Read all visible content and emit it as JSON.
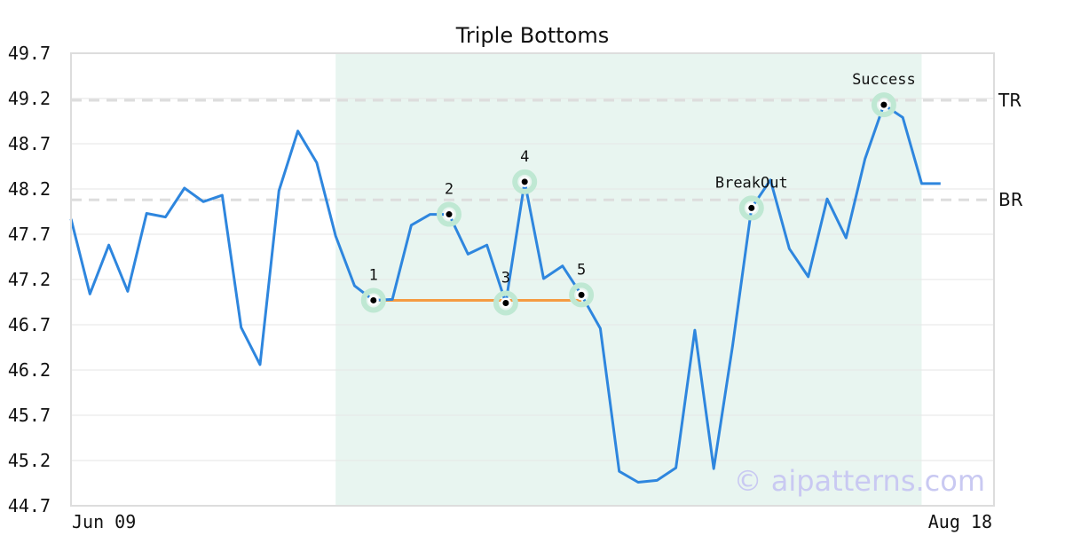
{
  "chart_data": {
    "type": "line",
    "title": "Triple Bottoms",
    "watermark": "© aipatterns.com",
    "xlabel": "",
    "ylabel": "",
    "x_tick_labels": [
      "Jun 09",
      "Aug 18"
    ],
    "y_ticks": [
      "44.7",
      "45.2",
      "45.7",
      "46.2",
      "46.7",
      "47.2",
      "47.7",
      "48.2",
      "48.7",
      "49.2",
      "49.7"
    ],
    "ylim": [
      44.7,
      49.7
    ],
    "x_count": 50,
    "grid": true,
    "colors": {
      "line": "#2e86de",
      "base": "#f59b42",
      "highlight": "#e8f5f0",
      "marker_ring": "#bfe8d3",
      "level_line": "#dddddd",
      "watermark": "#c9c9f2"
    },
    "pattern_region": {
      "start_index": 14,
      "end_index": 45
    },
    "series": [
      {
        "values": [
          47.87,
          47.04,
          47.58,
          47.07,
          47.93,
          47.89,
          48.21,
          48.06,
          48.13,
          46.67,
          46.26,
          48.18,
          48.84,
          48.49,
          47.68,
          47.13,
          46.97,
          46.98,
          47.8,
          47.92,
          47.92,
          47.48,
          47.58,
          46.94,
          48.28,
          47.21,
          47.35,
          47.03,
          46.66,
          45.08,
          44.96,
          44.98,
          45.12,
          46.64,
          45.11,
          46.47,
          47.99,
          48.3,
          47.54,
          47.23,
          48.09,
          47.66,
          48.53,
          49.13,
          48.99,
          48.26,
          48.26
        ]
      }
    ],
    "levels": [
      {
        "label": "TR",
        "value": 49.18
      },
      {
        "label": "BR",
        "value": 48.08
      }
    ],
    "base_line": {
      "from_index": 16,
      "to_index": 27,
      "value": 46.97
    },
    "points": [
      {
        "label": "1",
        "index": 16,
        "value": 46.97
      },
      {
        "label": "2",
        "index": 20,
        "value": 47.92
      },
      {
        "label": "3",
        "index": 23,
        "value": 46.94
      },
      {
        "label": "4",
        "index": 24,
        "value": 48.28
      },
      {
        "label": "5",
        "index": 27,
        "value": 47.03
      },
      {
        "label": "BreakOut",
        "index": 36,
        "value": 47.99
      },
      {
        "label": "Success",
        "index": 43,
        "value": 49.13
      }
    ]
  }
}
